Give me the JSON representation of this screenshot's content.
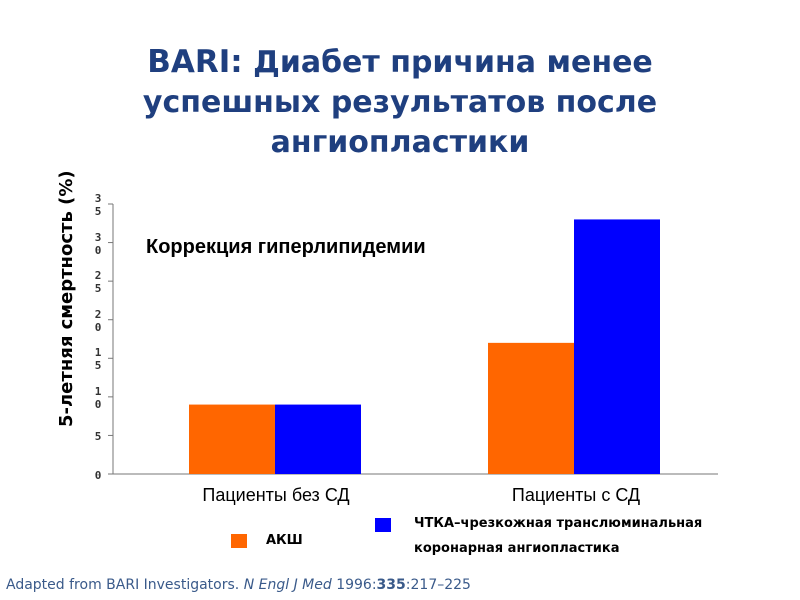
{
  "title": {
    "brand": "BARI:",
    "line1_rest": "Диабет причина менее",
    "line2": "успешных результатов после",
    "line3": "ангиопластики"
  },
  "source": {
    "prefix": "Adapted from BARI Investigators.",
    "journal": "N Engl J Med",
    "year": "1996:",
    "volume": "335",
    "pages": ":217–225"
  },
  "legend": {
    "cabg": "АКШ",
    "ptca_line1": "ЧТКА–чрезкожная транслюминальная",
    "ptca_line2": "коронарная ангиопластика"
  },
  "chart_data": {
    "type": "bar",
    "ylabel": "5-летняя смертность (%)",
    "yticks": [
      "0",
      "5",
      "10",
      "15",
      "20",
      "25",
      "30",
      "35"
    ],
    "ylim": [
      0,
      35
    ],
    "annotation": "Коррекция гиперлипидемии",
    "categories": [
      "Пациенты без СД",
      "Пациенты с СД"
    ],
    "series": [
      {
        "name": "АКШ",
        "color": "#ff6600",
        "values": [
          9,
          17
        ]
      },
      {
        "name": "ЧТКА–чрезкожная транслюминальная коронарная ангиопластика",
        "color": "#0000ff",
        "values": [
          9,
          33
        ]
      }
    ],
    "grid": false,
    "legend_position": "bottom"
  }
}
